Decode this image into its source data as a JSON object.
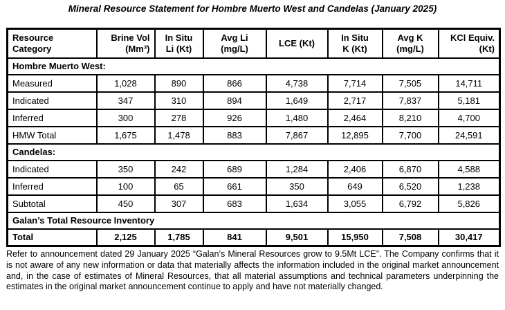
{
  "title": "Mineral Resource Statement for Hombre Muerto West and Candelas (January 2025)",
  "table": {
    "headers": [
      {
        "lines": [
          "Resource",
          "Category"
        ],
        "align": "left"
      },
      {
        "lines": [
          "Brine Vol",
          "(Mm³)"
        ],
        "align": "right"
      },
      {
        "lines": [
          "In Situ",
          "Li (Kt)"
        ],
        "align": "center"
      },
      {
        "lines": [
          "Avg Li",
          "(mg/L)"
        ],
        "align": "center"
      },
      {
        "lines": [
          "LCE (Kt)"
        ],
        "align": "center"
      },
      {
        "lines": [
          "In Situ",
          "K (Kt)"
        ],
        "align": "center"
      },
      {
        "lines": [
          "Avg K",
          "(mg/L)"
        ],
        "align": "center"
      },
      {
        "lines": [
          "KCl Equiv.",
          "(Kt)"
        ],
        "align": "right"
      }
    ],
    "sections": [
      {
        "label": "Hombre Muerto West:",
        "rows": [
          {
            "category": "Measured",
            "values": [
              "1,028",
              "890",
              "866",
              "4,738",
              "7,714",
              "7,505",
              "14,711"
            ],
            "bold": false
          },
          {
            "category": "Indicated",
            "values": [
              "347",
              "310",
              "894",
              "1,649",
              "2,717",
              "7,837",
              "5,181"
            ],
            "bold": false
          },
          {
            "category": "Inferred",
            "values": [
              "300",
              "278",
              "926",
              "1,480",
              "2,464",
              "8,210",
              "4,700"
            ],
            "bold": false
          },
          {
            "category": "HMW Total",
            "values": [
              "1,675",
              "1,478",
              "883",
              "7,867",
              "12,895",
              "7,700",
              "24,591"
            ],
            "bold": false
          }
        ]
      },
      {
        "label": "Candelas:",
        "rows": [
          {
            "category": "Indicated",
            "values": [
              "350",
              "242",
              "689",
              "1,284",
              "2,406",
              "6,870",
              "4,588"
            ],
            "bold": false
          },
          {
            "category": "Inferred",
            "values": [
              "100",
              "65",
              "661",
              "350",
              "649",
              "6,520",
              "1,238"
            ],
            "bold": false
          },
          {
            "category": "Subtotal",
            "values": [
              "450",
              "307",
              "683",
              "1,634",
              "3,055",
              "6,792",
              "5,826"
            ],
            "bold": false
          }
        ]
      },
      {
        "label": "Galan’s Total Resource Inventory",
        "rows": [
          {
            "category": "Total",
            "values": [
              "2,125",
              "1,785",
              "841",
              "9,501",
              "15,950",
              "7,508",
              "30,417"
            ],
            "bold": true
          }
        ]
      }
    ]
  },
  "footnote": "Refer to announcement dated 29 January 2025 “Galan’s Mineral Resources grow to 9.5Mt LCE”.  The Company confirms that it is not aware of any new information or data that materially affects the information included in the original market announcement and, in the case of estimates of Mineral Resources, that all material assumptions and technical parameters underpinning the estimates in the original market announcement continue to apply and have not materially changed."
}
